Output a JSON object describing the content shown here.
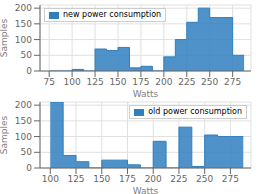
{
  "chart_data": [
    {
      "type": "histogram",
      "bins": [
        75,
        87.5,
        100,
        112.5,
        125,
        137.5,
        150,
        162.5,
        175,
        187.5,
        200,
        212.5,
        225,
        237.5,
        250,
        262.5,
        275,
        287.5
      ],
      "series": [
        {
          "name": "new power consumption",
          "color": "#2f7fbf",
          "values": [
            0,
            0,
            5,
            0,
            70,
            65,
            75,
            10,
            15,
            0,
            45,
            100,
            155,
            200,
            170,
            170,
            50
          ]
        }
      ],
      "xlabel": "Watts",
      "ylabel": "Samples",
      "xlim": [
        65,
        295
      ],
      "ylim": [
        0,
        210
      ],
      "xticks": [
        75,
        100,
        125,
        150,
        175,
        200,
        225,
        250,
        275
      ],
      "yticks": [
        0,
        50,
        100,
        150,
        200
      ],
      "grid": true,
      "legend": "upper left"
    },
    {
      "type": "histogram",
      "bins": [
        100,
        112.5,
        125,
        137.5,
        150,
        162.5,
        175,
        187.5,
        200,
        212.5,
        225,
        237.5,
        250,
        262.5,
        275,
        287.5
      ],
      "series": [
        {
          "name": "old power consumption",
          "color": "#2f7fbf",
          "values": [
            210,
            40,
            20,
            0,
            25,
            25,
            10,
            0,
            85,
            0,
            130,
            5,
            105,
            100,
            100
          ]
        }
      ],
      "xlabel": "Watts",
      "ylabel": "Samples",
      "xlim": [
        90,
        295
      ],
      "ylim": [
        0,
        210
      ],
      "xticks": [
        100,
        125,
        150,
        175,
        200,
        225,
        250,
        275
      ],
      "yticks": [
        0,
        50,
        100,
        150,
        200
      ],
      "grid": true,
      "legend": "upper right"
    }
  ]
}
